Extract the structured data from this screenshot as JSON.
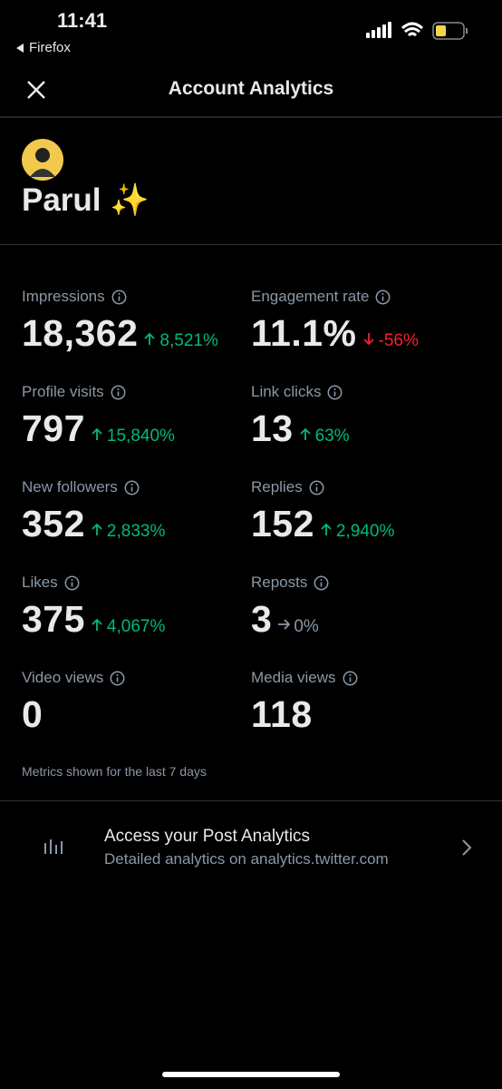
{
  "status_bar": {
    "time": "11:41",
    "back_app": "Firefox"
  },
  "header": {
    "title": "Account Analytics"
  },
  "profile": {
    "name": "Parul ✨"
  },
  "metrics": [
    {
      "label": "Impressions",
      "value": "18,362",
      "change": "8,521%",
      "trend": "up"
    },
    {
      "label": "Engagement rate",
      "value": "11.1%",
      "change": "-56%",
      "trend": "down"
    },
    {
      "label": "Profile visits",
      "value": "797",
      "change": "15,840%",
      "trend": "up"
    },
    {
      "label": "Link clicks",
      "value": "13",
      "change": "63%",
      "trend": "up"
    },
    {
      "label": "New followers",
      "value": "352",
      "change": "2,833%",
      "trend": "up"
    },
    {
      "label": "Replies",
      "value": "152",
      "change": "2,940%",
      "trend": "up"
    },
    {
      "label": "Likes",
      "value": "375",
      "change": "4,067%",
      "trend": "up"
    },
    {
      "label": "Reposts",
      "value": "3",
      "change": "0%",
      "trend": "flat"
    },
    {
      "label": "Video views",
      "value": "0"
    },
    {
      "label": "Media views",
      "value": "118"
    }
  ],
  "footnote": "Metrics shown for the last 7 days",
  "link": {
    "title": "Access your Post Analytics",
    "subtitle": "Detailed analytics on analytics.twitter.com"
  }
}
